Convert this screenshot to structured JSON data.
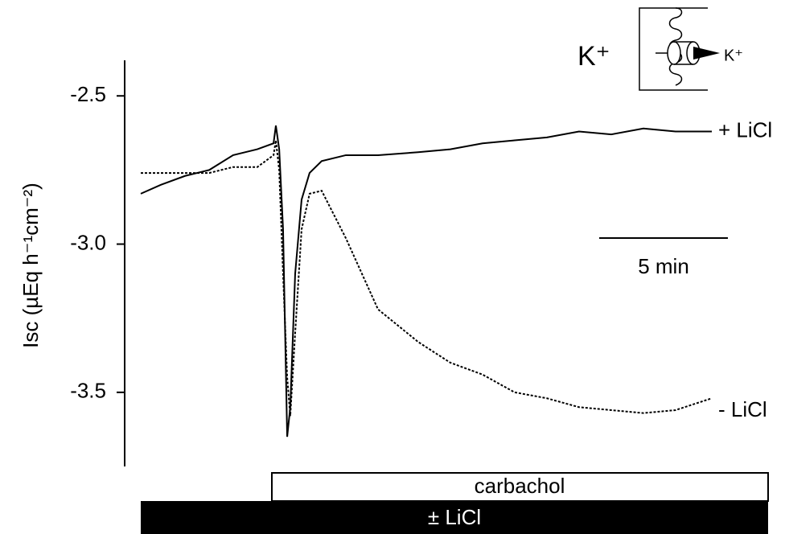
{
  "chart_data": {
    "type": "line",
    "y_label": "Isc (µEq h⁻¹cm⁻²)",
    "x": [
      0,
      0.78,
      1.72,
      2.66,
      3.59,
      4.53,
      5.16,
      5.25,
      5.38,
      5.53,
      5.69,
      5.81,
      6.0,
      6.25,
      6.56,
      7.03,
      7.97,
      9.22,
      10.78,
      12.03,
      13.28,
      14.53,
      15.78,
      17.03,
      18.28,
      19.53,
      20.78,
      22.19
    ],
    "xlim": [
      0,
      22.19
    ],
    "ylim": [
      -3.75,
      -2.38
    ],
    "yticks": [
      -2.5,
      {
        "value": -3,
        "label": "-3.0"
      },
      -3.5
    ],
    "series": [
      {
        "name": "+ LiCl",
        "color": "#000000",
        "dash": false,
        "values": [
          -2.83,
          -2.8,
          -2.77,
          -2.75,
          -2.7,
          -2.68,
          -2.66,
          -2.6,
          -2.68,
          -2.95,
          -3.65,
          -3.55,
          -3.1,
          -2.85,
          -2.76,
          -2.72,
          -2.7,
          -2.7,
          -2.69,
          -2.68,
          -2.66,
          -2.65,
          -2.64,
          -2.62,
          -2.63,
          -2.61,
          -2.62,
          -2.62
        ]
      },
      {
        "name": "- LiCl",
        "color": "#000000",
        "dash": true,
        "values": [
          -2.76,
          -2.76,
          -2.76,
          -2.76,
          -2.74,
          -2.74,
          -2.7,
          -2.65,
          -2.75,
          -3.1,
          -3.45,
          -3.58,
          -3.3,
          -2.95,
          -2.83,
          -2.82,
          -2.98,
          -3.22,
          -3.33,
          -3.4,
          -3.44,
          -3.5,
          -3.52,
          -3.55,
          -3.56,
          -3.57,
          -3.56,
          -3.52
        ]
      }
    ],
    "scale_bar": {
      "value": 5,
      "label": "5 min"
    },
    "bars": {
      "carbachol": "carbachol",
      "licl": "± LiCl"
    },
    "inset": {
      "ion": "K⁺",
      "channel_ion": "K⁺"
    }
  }
}
